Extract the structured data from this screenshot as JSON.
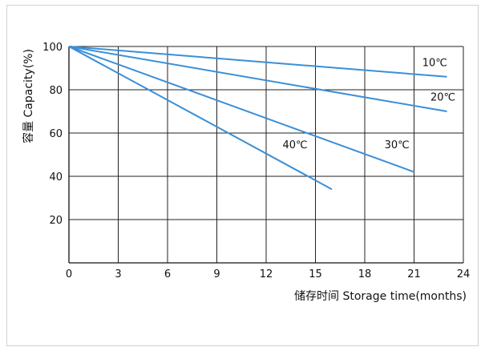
{
  "chart_data": {
    "type": "line",
    "xlabel": "储存时间 Storage time(months)",
    "ylabel": "容量 Capacity(%)",
    "xlim": [
      0,
      24
    ],
    "ylim": [
      0,
      100
    ],
    "x_ticks": [
      0,
      3,
      6,
      9,
      12,
      15,
      18,
      21,
      24
    ],
    "y_ticks": [
      20,
      40,
      60,
      80,
      100
    ],
    "grid": true,
    "line_color": "#3a8fd8",
    "series": [
      {
        "name": "10℃",
        "x": [
          0,
          23
        ],
        "y": [
          100,
          86
        ],
        "label_at": [
          21.5,
          91
        ]
      },
      {
        "name": "20℃",
        "x": [
          0,
          23
        ],
        "y": [
          100,
          70
        ],
        "label_at": [
          22,
          75
        ]
      },
      {
        "name": "30℃",
        "x": [
          0,
          21
        ],
        "y": [
          100,
          42
        ],
        "label_at": [
          19.2,
          53
        ]
      },
      {
        "name": "40℃",
        "x": [
          0,
          16
        ],
        "y": [
          100,
          34
        ],
        "label_at": [
          13,
          53
        ]
      }
    ]
  }
}
